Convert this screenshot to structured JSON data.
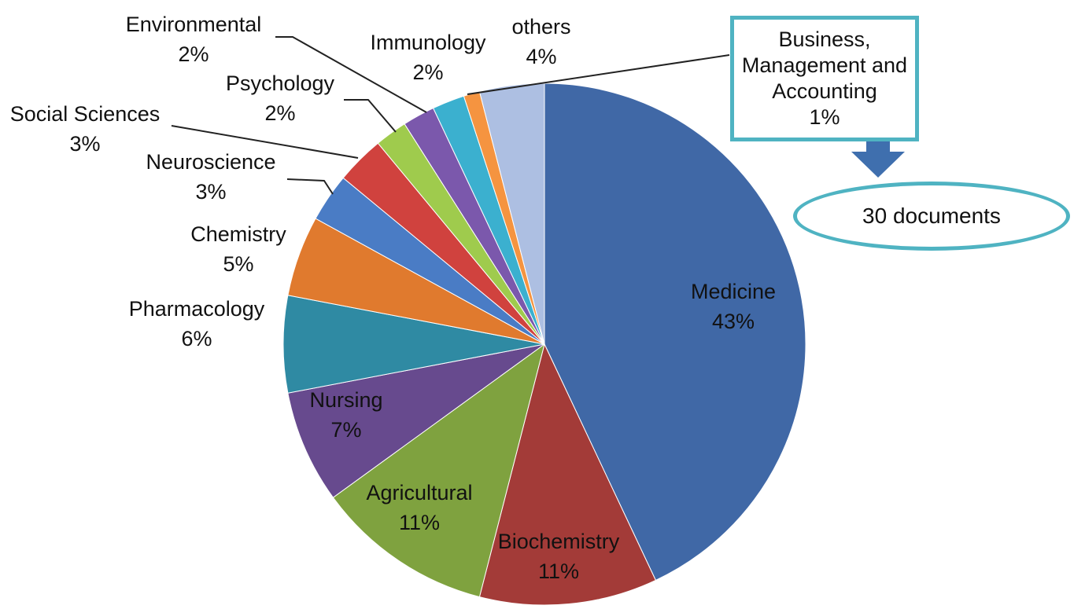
{
  "chart_data": {
    "type": "pie",
    "title": "",
    "slices": [
      {
        "label": "Medicine",
        "value": 43,
        "pct_label": "43%",
        "color": "#4068a6"
      },
      {
        "label": "Biochemistry",
        "value": 11,
        "pct_label": "11%",
        "color": "#a33b38"
      },
      {
        "label": "Agricultural",
        "value": 11,
        "pct_label": "11%",
        "color": "#7fa23f"
      },
      {
        "label": "Nursing",
        "value": 7,
        "pct_label": "7%",
        "color": "#674a8e"
      },
      {
        "label": "Pharmacology",
        "value": 6,
        "pct_label": "6%",
        "color": "#2f8aa3"
      },
      {
        "label": "Chemistry",
        "value": 5,
        "pct_label": "5%",
        "color": "#e07a2e"
      },
      {
        "label": "Neuroscience",
        "value": 3,
        "pct_label": "3%",
        "color": "#4a7cc5"
      },
      {
        "label": "Social Sciences",
        "value": 3,
        "pct_label": "3%",
        "color": "#d0423e"
      },
      {
        "label": "Psychology",
        "value": 2,
        "pct_label": "2%",
        "color": "#9fcb4d"
      },
      {
        "label": "Environmental",
        "value": 2,
        "pct_label": "2%",
        "color": "#7b58ac"
      },
      {
        "label": "Immunology",
        "value": 2,
        "pct_label": "2%",
        "color": "#3bb0cf"
      },
      {
        "label": "Business, Management and Accounting",
        "value": 1,
        "pct_label": "1%",
        "color": "#f59440"
      },
      {
        "label": "others",
        "value": 4,
        "pct_label": "4%",
        "color": "#adbfe2"
      }
    ],
    "legend": "none",
    "callout": {
      "lines": [
        "Business,",
        "Management and",
        "Accounting",
        "1%"
      ],
      "result": "30 documents",
      "border_color": "#4fb3c2",
      "arrow_color": "#3f6fae"
    }
  }
}
